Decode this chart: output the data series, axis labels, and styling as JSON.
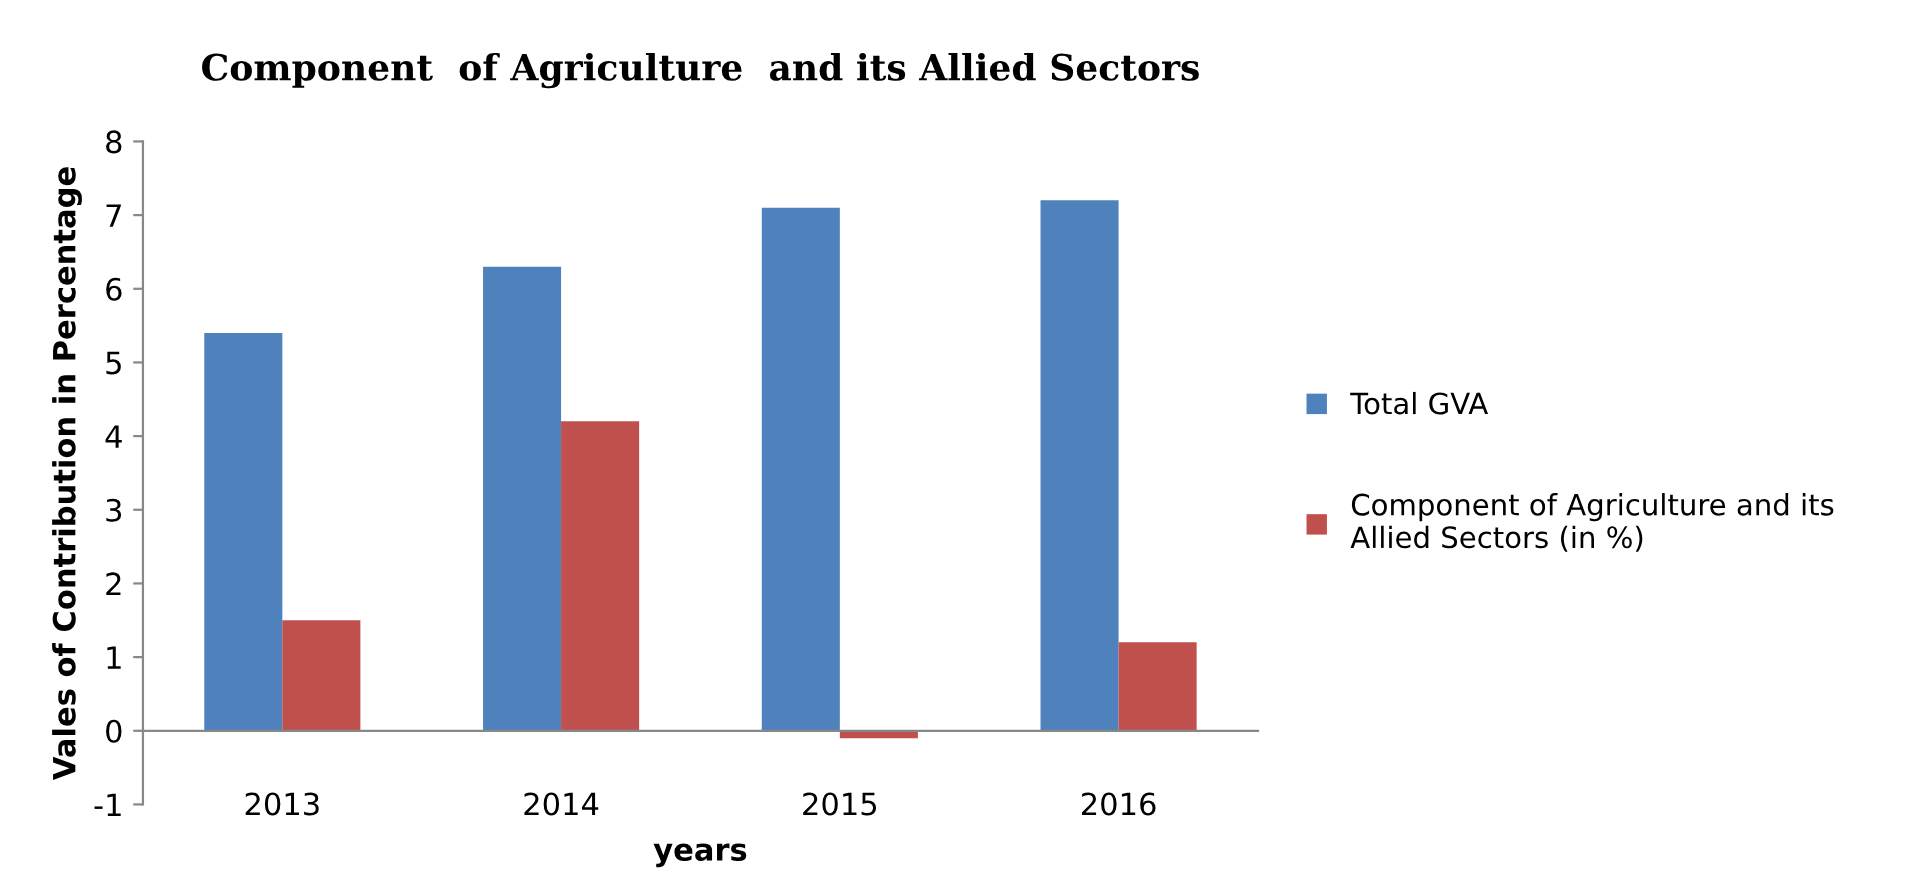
{
  "chart_data": {
    "type": "bar",
    "title": "Component  of Agriculture  and its Allied Sectors",
    "xlabel": "years",
    "ylabel": "Vales of Contribution in Percentage",
    "categories": [
      "2013",
      "2014",
      "2015",
      "2016"
    ],
    "series": [
      {
        "name": "Total GVA",
        "color": "#4f81bd",
        "values": [
          5.4,
          6.3,
          7.1,
          7.2
        ]
      },
      {
        "name": "Component of Agriculture and its Allied Sectors (in %)",
        "color": "#c0504d",
        "values": [
          1.5,
          4.2,
          -0.1,
          1.2
        ]
      }
    ],
    "ylim": [
      -1,
      8
    ],
    "yticks": [
      -1,
      0,
      1,
      2,
      3,
      4,
      5,
      6,
      7,
      8
    ],
    "grid": false,
    "legend": "right"
  }
}
